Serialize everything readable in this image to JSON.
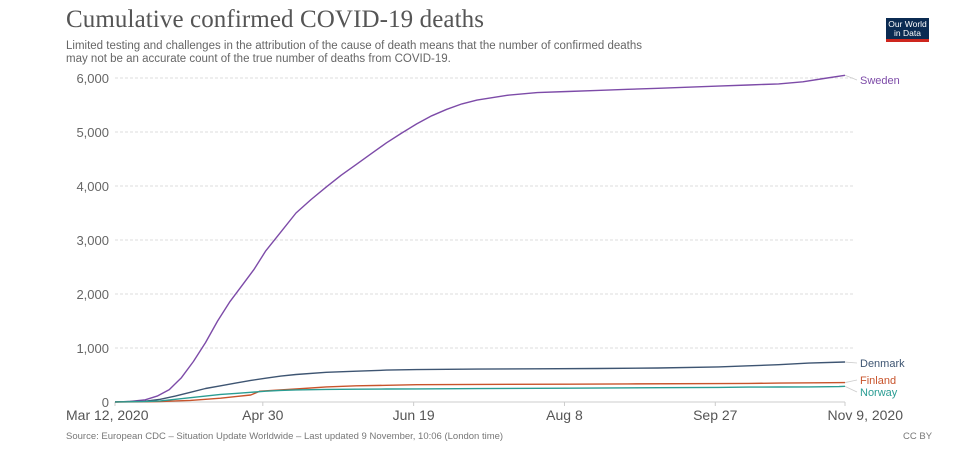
{
  "header": {
    "title": "Cumulative confirmed COVID-19 deaths",
    "subtitle_line1": "Limited testing and challenges in the attribution of the cause of death means that the number of confirmed deaths",
    "subtitle_line2": "may not be an accurate count of the true number of deaths from COVID-19.",
    "logo_line1": "Our World",
    "logo_line2": "in Data"
  },
  "footer": {
    "source": "Source: European CDC – Situation Update Worldwide – Last updated 9 November, 10:06 (London time)",
    "license": "CC BY"
  },
  "colors": {
    "Sweden": "#7d4ba8",
    "Denmark": "#3e5572",
    "Finland": "#c8542c",
    "Norway": "#2a9d93",
    "grid": "#dddddd",
    "axis": "#cccccc"
  },
  "chart_data": {
    "type": "line",
    "title": "Cumulative confirmed COVID-19 deaths",
    "xlabel": "",
    "ylabel": "",
    "x_unit": "days since Mar 12, 2020",
    "xlim": [
      0,
      242
    ],
    "ylim": [
      0,
      6000
    ],
    "x_ticks": [
      {
        "day": 0,
        "label": "Mar 12, 2020"
      },
      {
        "day": 49,
        "label": "Apr 30"
      },
      {
        "day": 99,
        "label": "Jun 19"
      },
      {
        "day": 149,
        "label": "Aug 8"
      },
      {
        "day": 199,
        "label": "Sep 27"
      },
      {
        "day": 242,
        "label": "Nov 9, 2020"
      }
    ],
    "y_ticks": [
      {
        "value": 0,
        "label": "0"
      },
      {
        "value": 1000,
        "label": "1,000"
      },
      {
        "value": 2000,
        "label": "2,000"
      },
      {
        "value": 3000,
        "label": "3,000"
      },
      {
        "value": 4000,
        "label": "4,000"
      },
      {
        "value": 5000,
        "label": "5,000"
      },
      {
        "value": 6000,
        "label": "6,000"
      }
    ],
    "grid": true,
    "legend": "right (inline labels at line ends)",
    "series": [
      {
        "name": "Sweden",
        "x": [
          0,
          5,
          10,
          14,
          18,
          22,
          26,
          30,
          34,
          38,
          42,
          46,
          50,
          55,
          60,
          65,
          70,
          75,
          80,
          85,
          90,
          95,
          100,
          105,
          110,
          115,
          120,
          130,
          140,
          150,
          160,
          170,
          180,
          190,
          200,
          210,
          220,
          228,
          235,
          242
        ],
        "values": [
          1,
          10,
          40,
          110,
          230,
          450,
          750,
          1100,
          1500,
          1850,
          2150,
          2450,
          2800,
          3150,
          3500,
          3750,
          3980,
          4200,
          4400,
          4600,
          4800,
          4980,
          5150,
          5300,
          5420,
          5520,
          5590,
          5680,
          5730,
          5750,
          5770,
          5790,
          5810,
          5830,
          5850,
          5870,
          5890,
          5930,
          5990,
          6050
        ]
      },
      {
        "name": "Denmark",
        "x": [
          0,
          10,
          15,
          20,
          25,
          30,
          35,
          40,
          45,
          50,
          55,
          60,
          70,
          80,
          90,
          100,
          120,
          140,
          160,
          180,
          200,
          210,
          220,
          230,
          242
        ],
        "values": [
          1,
          15,
          50,
          110,
          180,
          250,
          300,
          350,
          400,
          440,
          480,
          510,
          550,
          570,
          590,
          600,
          610,
          615,
          620,
          630,
          650,
          670,
          690,
          720,
          740
        ]
      },
      {
        "name": "Finland",
        "x": [
          0,
          10,
          15,
          20,
          25,
          30,
          35,
          40,
          45,
          48,
          52,
          60,
          70,
          80,
          90,
          100,
          120,
          150,
          170,
          200,
          210,
          220,
          232,
          242
        ],
        "values": [
          0,
          3,
          10,
          20,
          30,
          50,
          70,
          100,
          130,
          200,
          215,
          240,
          280,
          300,
          310,
          320,
          325,
          330,
          335,
          340,
          345,
          350,
          355,
          360
        ]
      },
      {
        "name": "Norway",
        "x": [
          0,
          10,
          15,
          20,
          25,
          30,
          35,
          40,
          45,
          50,
          55,
          60,
          70,
          80,
          90,
          100,
          120,
          150,
          180,
          200,
          210,
          220,
          230,
          240,
          242
        ],
        "values": [
          1,
          7,
          20,
          50,
          80,
          110,
          140,
          160,
          180,
          200,
          215,
          225,
          233,
          237,
          240,
          243,
          248,
          255,
          265,
          270,
          275,
          278,
          280,
          285,
          290
        ]
      }
    ]
  }
}
